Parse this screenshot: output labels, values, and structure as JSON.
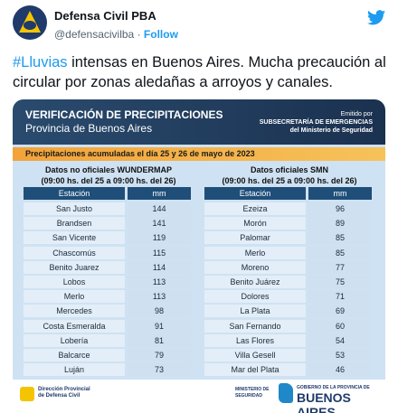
{
  "tweet": {
    "author": {
      "name": "Defensa Civil PBA",
      "handle": "@defensacivilba",
      "separator": "·",
      "follow": "Follow"
    },
    "text": {
      "hashtag": "#Lluvias",
      "body": " intensas en Buenos Aires. Mucha precaución al circular por zonas aledañas a arroyos y canales."
    },
    "image": {
      "title": "VERIFICACIÓN DE PRECIPITACIONES",
      "subtitle": "Provincia de Buenos Aires",
      "issuer": [
        "Emitido por",
        "SUBSECRETARÍA DE EMERGENCIAS",
        "del Ministerio de Seguridad"
      ],
      "banner": "Precipitaciones acumuladas el día 25 y 26 de mayo de 2023",
      "tables": [
        {
          "title": "Datos no oficiales WUNDERMAP",
          "period": "(09:00 hs. del 25 a 09:00 hs. del 26)",
          "header": [
            "Estación",
            "mm"
          ],
          "rows": [
            [
              "San Justo",
              144
            ],
            [
              "Brandsen",
              141
            ],
            [
              "San Vicente",
              119
            ],
            [
              "Chascomús",
              115
            ],
            [
              "Benito Juarez",
              114
            ],
            [
              "Lobos",
              113
            ],
            [
              "Merlo",
              113
            ],
            [
              "Mercedes",
              98
            ],
            [
              "Costa Esmeralda",
              91
            ],
            [
              "Lobería",
              81
            ],
            [
              "Balcarce",
              79
            ],
            [
              "Luján",
              73
            ]
          ]
        },
        {
          "title": "Datos oficiales SMN",
          "period": "(09:00 hs. del 25 a 09:00 hs. del 26)",
          "header": [
            "Estación",
            "mm"
          ],
          "rows": [
            [
              "Ezeiza",
              96
            ],
            [
              "Morón",
              89
            ],
            [
              "Palomar",
              85
            ],
            [
              "Merlo",
              85
            ],
            [
              "Moreno",
              77
            ],
            [
              "Benito Juárez",
              75
            ],
            [
              "Dolores",
              71
            ],
            [
              "La Plata",
              69
            ],
            [
              "San Fernando",
              60
            ],
            [
              "Las Flores",
              54
            ],
            [
              "Villa Gesell",
              53
            ],
            [
              "Mar del Plata",
              46
            ]
          ]
        }
      ],
      "footer": {
        "left": [
          "Dirección Provincial",
          "de Defensa Civil"
        ],
        "middle": [
          "MINISTERIO DE",
          "SEGURIDAD"
        ],
        "right_small": "GOBIERNO DE LA PROVINCIA DE",
        "right_big": "BUENOS AIRES"
      }
    }
  }
}
